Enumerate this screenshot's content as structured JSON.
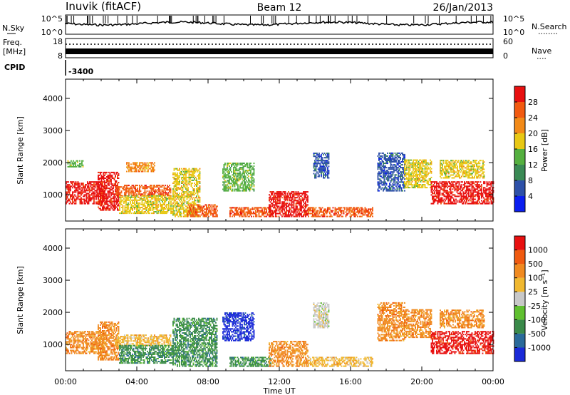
{
  "header": {
    "station": "Inuvik (fitACF)",
    "beam": "Beam 12",
    "date": "26/Jan/2013"
  },
  "status_panels": {
    "nsky_label": "N.Sky",
    "nsky_ticks": [
      "10^5",
      "10^0"
    ],
    "nsearch_label": "N.Search",
    "nsearch_ticks": [
      "10^5",
      "10^0"
    ],
    "freq_label_line1": "Freq.",
    "freq_label_line2": "[MHz]",
    "freq_ticks": [
      "18",
      "8"
    ],
    "nave_label": "Nave",
    "nave_ticks": [
      "60",
      "0"
    ],
    "cpid_label": "CPID",
    "cpid_value": "-3400"
  },
  "time_axis": {
    "label": "Time UT",
    "ticks": [
      "00:00",
      "04:00",
      "08:00",
      "12:00",
      "16:00",
      "20:00",
      "00:00"
    ]
  },
  "power_colorbar": {
    "label": "Power [dB]",
    "ticks": [
      "4",
      "8",
      "12",
      "16",
      "20",
      "24",
      "28"
    ],
    "colors": [
      "#0a1ef0",
      "#2d50a8",
      "#3a8a55",
      "#55b040",
      "#e8c814",
      "#f28a18",
      "#f25a10",
      "#e81010"
    ]
  },
  "velocity_colorbar": {
    "label": "Velocity [m s⁻¹]",
    "ticks": [
      "1000",
      "500",
      "100",
      "25",
      "-25",
      "-100",
      "-500",
      "-1000"
    ],
    "colors": [
      "#1a2ad8",
      "#2a6a9a",
      "#3a8a4a",
      "#60c030",
      "#c8c8c8",
      "#f0b830",
      "#f08a20",
      "#f05a10",
      "#e81010"
    ]
  },
  "chart_data": [
    {
      "type": "heatmap",
      "title": "Power",
      "ylabel": "Slant Range [km]",
      "xlabel": "",
      "ylim": [
        180,
        4600
      ],
      "yticks": [
        1000,
        2000,
        3000,
        4000
      ],
      "xlim_hours": [
        0,
        24
      ],
      "colorbar_label": "Power [dB]",
      "blobs": [
        {
          "t0": 0.0,
          "t1": 2.2,
          "r0": 700,
          "r1": 1400,
          "c": 7
        },
        {
          "t0": 0.1,
          "t1": 1.0,
          "r0": 1850,
          "r1": 2050,
          "c": 3
        },
        {
          "t0": 1.8,
          "t1": 3.0,
          "r0": 500,
          "r1": 1700,
          "c": 7
        },
        {
          "t0": 2.8,
          "t1": 5.9,
          "r0": 950,
          "r1": 1300,
          "c": 6
        },
        {
          "t0": 3.0,
          "t1": 6.0,
          "r0": 400,
          "r1": 950,
          "c": 4
        },
        {
          "t0": 3.4,
          "t1": 5.0,
          "r0": 1700,
          "r1": 2000,
          "c": 5
        },
        {
          "t0": 6.0,
          "t1": 7.5,
          "r0": 300,
          "r1": 1800,
          "c": 4
        },
        {
          "t0": 6.8,
          "t1": 8.5,
          "r0": 300,
          "r1": 700,
          "c": 6
        },
        {
          "t0": 8.8,
          "t1": 10.6,
          "r0": 1100,
          "r1": 2000,
          "c": 3
        },
        {
          "t0": 9.2,
          "t1": 11.5,
          "r0": 300,
          "r1": 600,
          "c": 6
        },
        {
          "t0": 11.4,
          "t1": 13.6,
          "r0": 300,
          "r1": 1100,
          "c": 7
        },
        {
          "t0": 13.6,
          "t1": 17.2,
          "r0": 300,
          "r1": 600,
          "c": 6
        },
        {
          "t0": 13.9,
          "t1": 14.8,
          "r0": 1500,
          "r1": 2300,
          "c": 1
        },
        {
          "t0": 17.5,
          "t1": 19.0,
          "r0": 1100,
          "r1": 2300,
          "c": 1
        },
        {
          "t0": 19.0,
          "t1": 20.5,
          "r0": 1200,
          "r1": 2100,
          "c": 4
        },
        {
          "t0": 20.5,
          "t1": 24.0,
          "r0": 700,
          "r1": 1400,
          "c": 7
        },
        {
          "t0": 21.0,
          "t1": 23.5,
          "r0": 1500,
          "r1": 2050,
          "c": 4
        }
      ]
    },
    {
      "type": "heatmap",
      "title": "Velocity",
      "ylabel": "Slant Range [km]",
      "xlabel": "Time UT",
      "ylim": [
        180,
        4600
      ],
      "yticks": [
        1000,
        2000,
        3000,
        4000
      ],
      "xlim_hours": [
        0,
        24
      ],
      "colorbar_label": "Velocity [m s⁻¹]",
      "blobs": [
        {
          "t0": 0.0,
          "t1": 2.2,
          "r0": 700,
          "r1": 1400,
          "c": 6
        },
        {
          "t0": 1.8,
          "t1": 3.0,
          "r0": 500,
          "r1": 1700,
          "c": 6
        },
        {
          "t0": 2.8,
          "t1": 5.9,
          "r0": 950,
          "r1": 1300,
          "c": 5
        },
        {
          "t0": 3.0,
          "t1": 6.0,
          "r0": 400,
          "r1": 950,
          "c": 2
        },
        {
          "t0": 6.0,
          "t1": 8.5,
          "r0": 300,
          "r1": 1800,
          "c": 2
        },
        {
          "t0": 8.8,
          "t1": 10.6,
          "r0": 1100,
          "r1": 2000,
          "c": 0
        },
        {
          "t0": 9.2,
          "t1": 11.5,
          "r0": 300,
          "r1": 600,
          "c": 2
        },
        {
          "t0": 11.4,
          "t1": 13.6,
          "r0": 300,
          "r1": 1100,
          "c": 6
        },
        {
          "t0": 13.6,
          "t1": 17.2,
          "r0": 300,
          "r1": 600,
          "c": 5
        },
        {
          "t0": 13.9,
          "t1": 14.8,
          "r0": 1500,
          "r1": 2300,
          "c": 4
        },
        {
          "t0": 17.5,
          "t1": 19.0,
          "r0": 1100,
          "r1": 2300,
          "c": 6
        },
        {
          "t0": 19.0,
          "t1": 20.5,
          "r0": 1200,
          "r1": 2100,
          "c": 6
        },
        {
          "t0": 20.5,
          "t1": 24.0,
          "r0": 700,
          "r1": 1400,
          "c": 8
        },
        {
          "t0": 21.0,
          "t1": 23.5,
          "r0": 1500,
          "r1": 2050,
          "c": 6
        }
      ]
    }
  ]
}
